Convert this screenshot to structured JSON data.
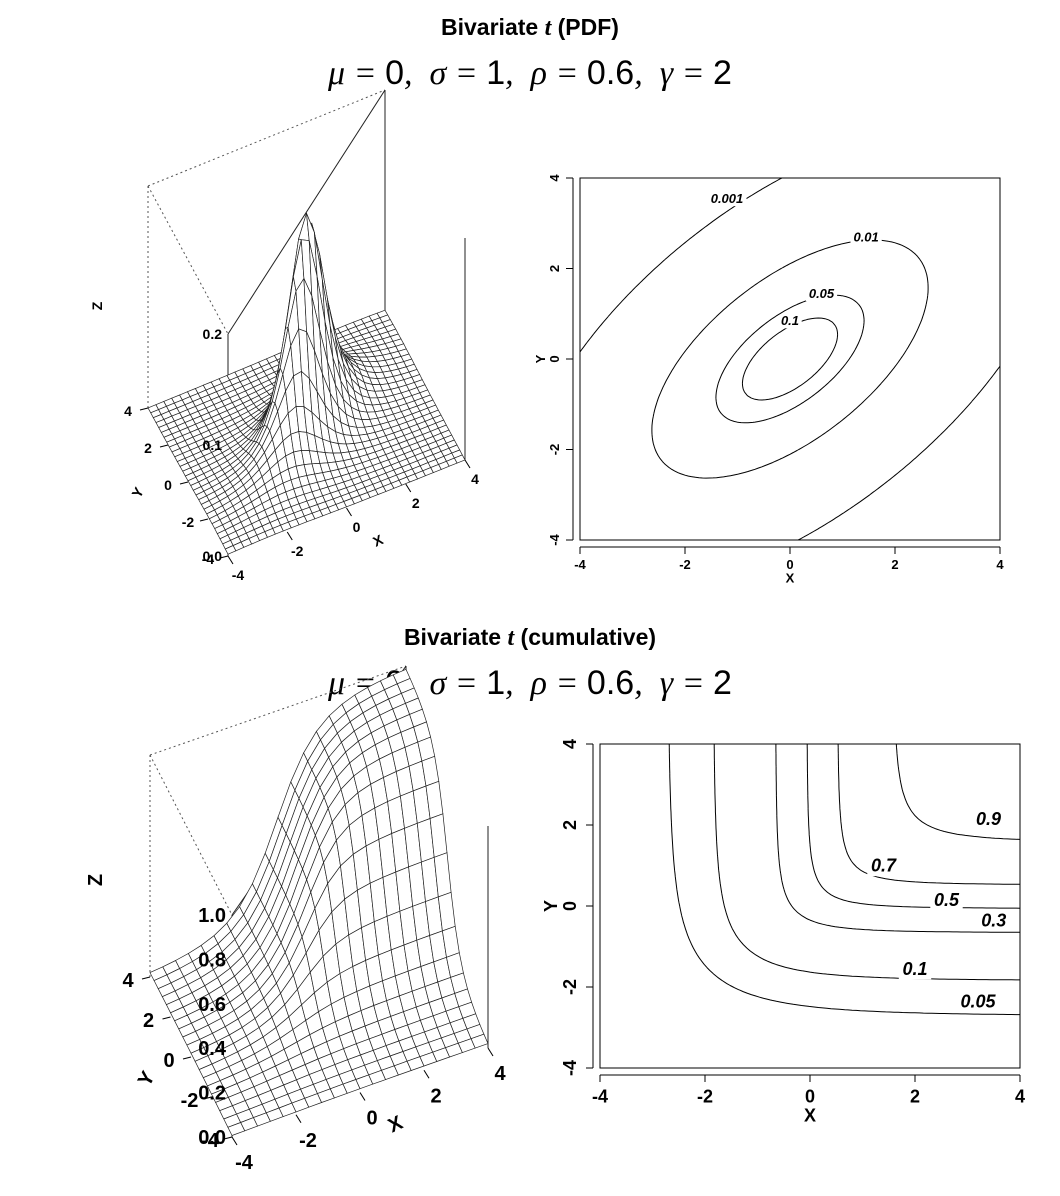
{
  "titles": {
    "pdf": {
      "prefix": "Bivariate ",
      "var": "t",
      "suffix": " (PDF)"
    },
    "cdf": {
      "prefix": "Bivariate ",
      "var": "t",
      "suffix": " (cumulative)"
    }
  },
  "params": {
    "mu_sym": "μ",
    "mu_val": "0",
    "sigma_sym": "σ",
    "sigma_val": "1",
    "rho_sym": "ρ",
    "rho_val": "0.6",
    "gamma_sym": "γ",
    "gamma_val": "2"
  },
  "chart_data": [
    {
      "id": "pdf-surface",
      "type": "surface",
      "function": "bivariate t density",
      "mu": 0,
      "sigma": 1,
      "rho": 0.6,
      "df": 2,
      "xlabel": "X",
      "ylabel": "Y",
      "zlabel": "Z",
      "xlim": [
        -4,
        4
      ],
      "ylim": [
        -4,
        4
      ],
      "zlim": [
        0,
        0.2
      ],
      "x_ticks": [
        -4,
        -2,
        0,
        2,
        4
      ],
      "y_ticks": [
        -4,
        -2,
        0,
        2,
        4
      ],
      "z_ticks": [
        "0.0",
        "0.1",
        "0.2"
      ],
      "grid": "30x30"
    },
    {
      "id": "pdf-contour",
      "type": "contour",
      "function": "bivariate t density",
      "xlabel": "X",
      "ylabel": "Y",
      "xlim": [
        -4,
        4
      ],
      "ylim": [
        -4,
        4
      ],
      "x_ticks": [
        -4,
        -2,
        0,
        2,
        4
      ],
      "y_ticks": [
        -4,
        -2,
        0,
        2,
        4
      ],
      "levels": [
        "0.001",
        "0.01",
        "0.05",
        "0.1"
      ]
    },
    {
      "id": "cdf-surface",
      "type": "surface",
      "function": "bivariate t cumulative distribution",
      "mu": 0,
      "sigma": 1,
      "rho": 0.6,
      "df": 2,
      "xlabel": "X",
      "ylabel": "Y",
      "zlabel": "Z",
      "xlim": [
        -4,
        4
      ],
      "ylim": [
        -4,
        4
      ],
      "zlim": [
        0,
        1
      ],
      "x_ticks": [
        -4,
        -2,
        0,
        2,
        4
      ],
      "y_ticks": [
        -4,
        -2,
        0,
        2,
        4
      ],
      "z_ticks": [
        "0.0",
        "0.2",
        "0.4",
        "0.6",
        "0.8",
        "1.0"
      ],
      "grid": "20x20"
    },
    {
      "id": "cdf-contour",
      "type": "contour",
      "function": "bivariate t cumulative distribution",
      "xlabel": "X",
      "ylabel": "Y",
      "xlim": [
        -4,
        4
      ],
      "ylim": [
        -4,
        4
      ],
      "x_ticks": [
        -4,
        -2,
        0,
        2,
        4
      ],
      "y_ticks": [
        -4,
        -2,
        0,
        2,
        4
      ],
      "levels": [
        "0.05",
        "0.1",
        "0.3",
        "0.5",
        "0.7",
        "0.9"
      ]
    }
  ]
}
